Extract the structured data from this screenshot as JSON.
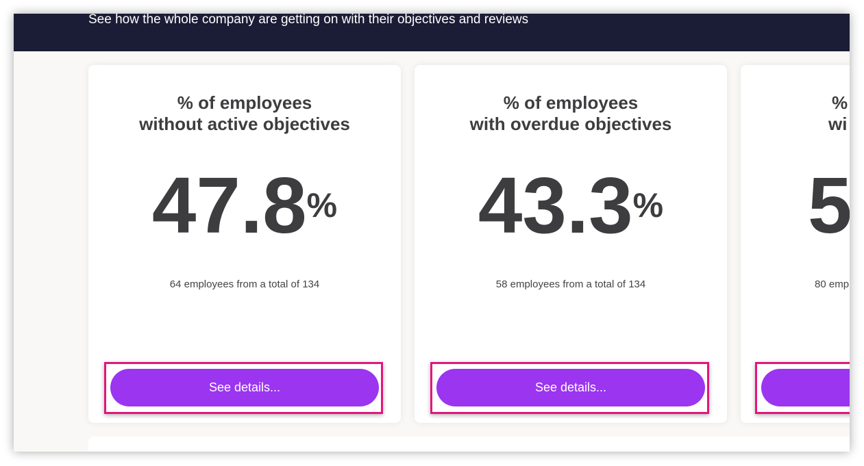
{
  "header": {
    "subtitle": "See how the whole company are getting on with their objectives and reviews"
  },
  "cards": [
    {
      "title_lines": [
        "% of employees",
        "without active objectives"
      ],
      "value": 47.8,
      "unit": "%",
      "note": "64 employees from a total of 134",
      "button": "See details..."
    },
    {
      "title_lines": [
        "% of employees",
        "with overdue objectives"
      ],
      "value": 43.3,
      "unit": "%",
      "note": "58 employees from a total of 134",
      "button": "See details..."
    }
  ],
  "partial_card": {
    "title_lines": [
      "%",
      "wi"
    ],
    "value": "5",
    "note": "80 emp"
  }
}
